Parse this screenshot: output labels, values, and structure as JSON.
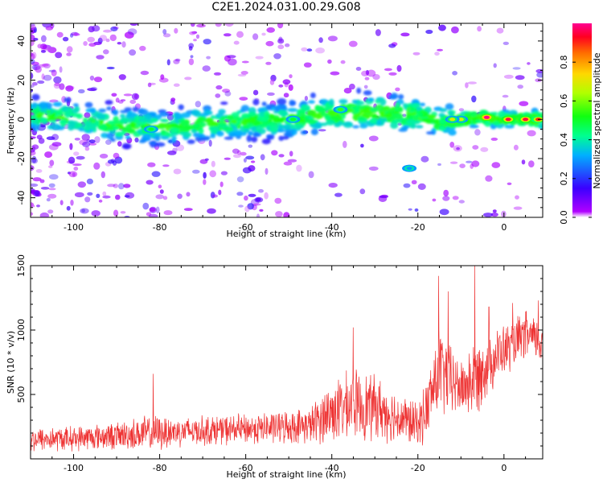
{
  "title": "C2E1.2024.031.00.29.G08",
  "chart_data": [
    {
      "type": "heatmap",
      "xlabel": "Height of straight line (km)",
      "ylabel": "Frequency (Hz)",
      "xlim": [
        -110,
        9
      ],
      "ylim": [
        -50,
        49
      ],
      "xticks": [
        -100,
        -80,
        -60,
        -40,
        -20,
        0
      ],
      "yticks": [
        -40,
        -20,
        0,
        20,
        40
      ],
      "grid": false,
      "colorbar": {
        "label": "Normalized spectral amplitude",
        "range": [
          0.0,
          1.0
        ],
        "ticks": [
          "0.0",
          "0.2",
          "0.4",
          "0.6",
          "0.8"
        ],
        "colormap": "gist_rainbow (white at 0)"
      },
      "ridge_center": [
        {
          "x": -110,
          "y": 2
        },
        {
          "x": -100,
          "y": 1
        },
        {
          "x": -90,
          "y": -3
        },
        {
          "x": -80,
          "y": -4
        },
        {
          "x": -70,
          "y": -2
        },
        {
          "x": -60,
          "y": -1
        },
        {
          "x": -50,
          "y": 0
        },
        {
          "x": -40,
          "y": 3
        },
        {
          "x": -30,
          "y": 4
        },
        {
          "x": -20,
          "y": 2
        },
        {
          "x": -15,
          "y": -1
        },
        {
          "x": -10,
          "y": 0
        },
        {
          "x": -5,
          "y": 1
        },
        {
          "x": 0,
          "y": 0
        },
        {
          "x": 9,
          "y": 0
        }
      ],
      "peak_points": [
        {
          "x": -4,
          "y": 1,
          "amplitude": 1.0
        },
        {
          "x": 1,
          "y": 0,
          "amplitude": 0.95
        },
        {
          "x": 5,
          "y": 0,
          "amplitude": 0.95
        },
        {
          "x": 8,
          "y": 0,
          "amplitude": 0.9
        },
        {
          "x": -10,
          "y": 0,
          "amplitude": 0.7
        },
        {
          "x": -12,
          "y": 0,
          "amplitude": 0.7
        },
        {
          "x": -38,
          "y": 5,
          "amplitude": 0.55
        },
        {
          "x": -49,
          "y": 0,
          "amplitude": 0.5
        },
        {
          "x": -82,
          "y": -5,
          "amplitude": 0.5
        },
        {
          "x": -22,
          "y": -25,
          "amplitude": 0.3
        }
      ]
    },
    {
      "type": "line",
      "xlabel": "Height of straight line (km)",
      "ylabel": "SNR (10 * v/v)",
      "xlim": [
        -110,
        9
      ],
      "ylim": [
        0,
        1500
      ],
      "xticks": [
        -100,
        -80,
        -60,
        -40,
        -20,
        0
      ],
      "yticks": [
        500,
        1000,
        1500
      ],
      "grid": false,
      "series": [
        {
          "color": "#ee3333",
          "envelope": [
            {
              "x": -110,
              "mean": 150,
              "spread": 90
            },
            {
              "x": -100,
              "mean": 160,
              "spread": 90
            },
            {
              "x": -90,
              "mean": 180,
              "spread": 100
            },
            {
              "x": -82,
              "mean": 200,
              "spread": 140
            },
            {
              "x": -75,
              "mean": 215,
              "spread": 110
            },
            {
              "x": -60,
              "mean": 230,
              "spread": 110
            },
            {
              "x": -45,
              "mean": 260,
              "spread": 130
            },
            {
              "x": -41,
              "mean": 350,
              "spread": 220
            },
            {
              "x": -35,
              "mean": 420,
              "spread": 260
            },
            {
              "x": -30,
              "mean": 400,
              "spread": 240
            },
            {
              "x": -25,
              "mean": 330,
              "spread": 190
            },
            {
              "x": -20,
              "mean": 260,
              "spread": 160
            },
            {
              "x": -18,
              "mean": 380,
              "spread": 220
            },
            {
              "x": -15,
              "mean": 700,
              "spread": 340
            },
            {
              "x": -13,
              "mean": 620,
              "spread": 280
            },
            {
              "x": -10,
              "mean": 550,
              "spread": 200
            },
            {
              "x": -7,
              "mean": 620,
              "spread": 300
            },
            {
              "x": -4,
              "mean": 730,
              "spread": 230
            },
            {
              "x": -1,
              "mean": 820,
              "spread": 200
            },
            {
              "x": 2,
              "mean": 880,
              "spread": 180
            },
            {
              "x": 5,
              "mean": 960,
              "spread": 180
            },
            {
              "x": 9,
              "mean": 900,
              "spread": 150
            }
          ],
          "peaks": [
            {
              "x": -81.5,
              "y": 660
            },
            {
              "x": -15.2,
              "y": 1420
            },
            {
              "x": -6.8,
              "y": 1500
            },
            {
              "x": -13,
              "y": 1300
            },
            {
              "x": -3.5,
              "y": 1180
            },
            {
              "x": 2,
              "y": 1210
            },
            {
              "x": 8,
              "y": 1230
            },
            {
              "x": -35,
              "y": 1020
            }
          ]
        }
      ]
    }
  ]
}
